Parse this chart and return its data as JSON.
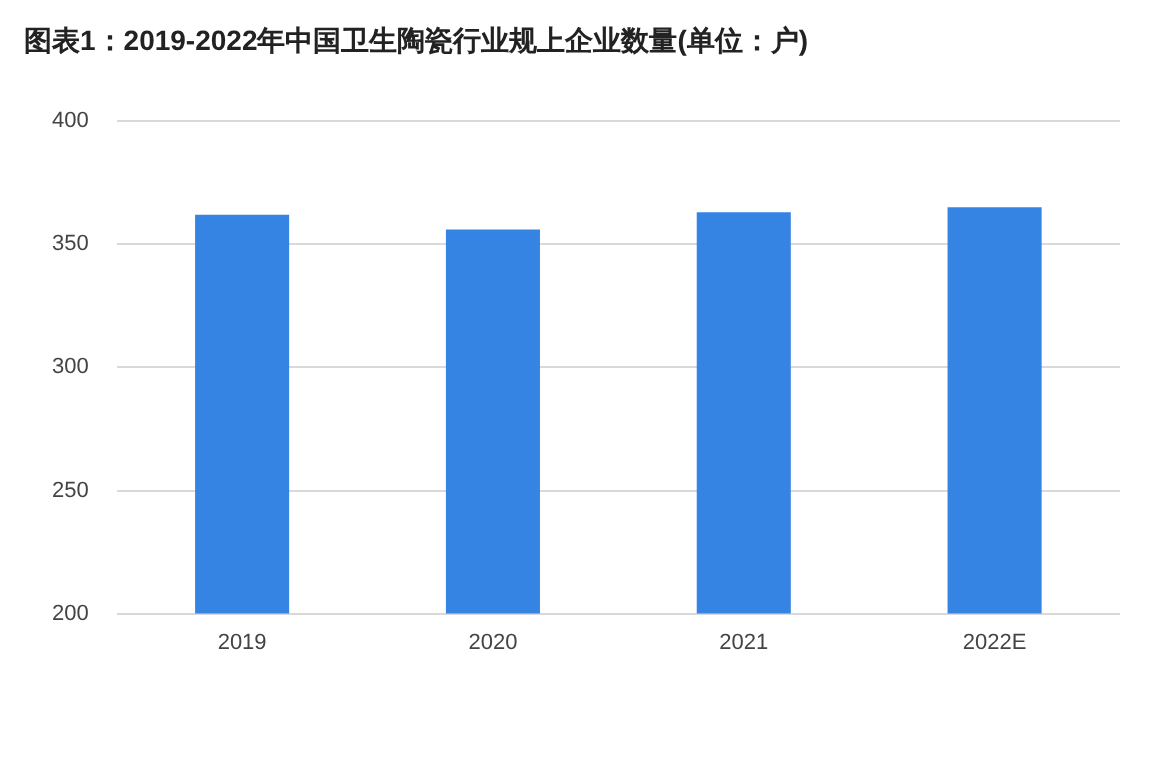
{
  "chart_data": {
    "type": "bar",
    "title": "图表1：2019-2022年中国卫生陶瓷行业规上企业数量(单位：户)",
    "categories": [
      "2019",
      "2020",
      "2021",
      "2022E"
    ],
    "values": [
      362,
      356,
      363,
      365
    ],
    "color": "#3584e4",
    "ylim": [
      200,
      400
    ],
    "yticks": [
      200,
      250,
      300,
      350,
      400
    ],
    "grid": "y"
  }
}
